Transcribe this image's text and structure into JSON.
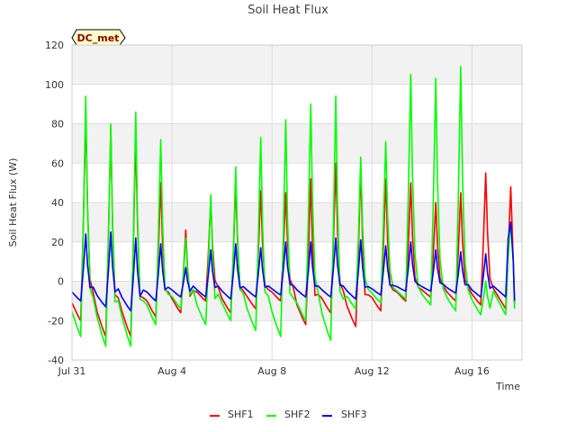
{
  "chart_data": {
    "type": "line",
    "title": "Soil Heat Flux",
    "xlabel": "Time",
    "ylabel": "Soil Heat Flux (W)",
    "site_tag": "DC_met",
    "ylim": [
      -40,
      120
    ],
    "yticks": [
      -40,
      -20,
      0,
      20,
      40,
      60,
      80,
      100,
      120
    ],
    "xlim": [
      "2023-07-31",
      "2023-08-18"
    ],
    "xticks": [
      {
        "date": "2023-07-31",
        "label": "Jul 31"
      },
      {
        "date": "2023-08-04",
        "label": "Aug 4"
      },
      {
        "date": "2023-08-08",
        "label": "Aug 8"
      },
      {
        "date": "2023-08-12",
        "label": "Aug 12"
      },
      {
        "date": "2023-08-16",
        "label": "Aug 16"
      }
    ],
    "grid": true,
    "legend": "bottom",
    "daily_peak_dates": [
      "2023-07-31",
      "2023-08-01",
      "2023-08-02",
      "2023-08-03",
      "2023-08-04",
      "2023-08-05",
      "2023-08-06",
      "2023-08-07",
      "2023-08-08",
      "2023-08-09",
      "2023-08-10",
      "2023-08-11",
      "2023-08-12",
      "2023-08-13",
      "2023-08-14",
      "2023-08-15",
      "2023-08-16",
      "2023-08-17"
    ],
    "series": [
      {
        "name": "SHF1",
        "color": "#ff0000",
        "daily_max": [
          85,
          78,
          74,
          50,
          26,
          42,
          50,
          46,
          45,
          52,
          60,
          58,
          52,
          50,
          40,
          45,
          55,
          48
        ],
        "daily_min": [
          -20,
          -28,
          -28,
          -18,
          -16,
          -10,
          -16,
          -14,
          -10,
          -22,
          -16,
          -23,
          -15,
          -10,
          -8,
          -10,
          -12,
          -14
        ],
        "end_value": -12
      },
      {
        "name": "SHF2",
        "color": "#00ff00",
        "daily_max": [
          94,
          80,
          86,
          72,
          22,
          44,
          58,
          73,
          82,
          90,
          94,
          63,
          71,
          105,
          103,
          109,
          0,
          0
        ],
        "daily_min": [
          -28,
          -33,
          -33,
          -22,
          -14,
          -22,
          -20,
          -25,
          -28,
          -20,
          -30,
          -14,
          -11,
          -9,
          -12,
          -15,
          -17,
          -17
        ],
        "end_value": -14
      },
      {
        "name": "SHF3",
        "color": "#0000ff",
        "daily_max": [
          24,
          25,
          22,
          19,
          7,
          16,
          19,
          17,
          20,
          20,
          22,
          21,
          18,
          20,
          16,
          15,
          14,
          14
        ],
        "daily_min": [
          -10,
          -13,
          -15,
          -10,
          -8,
          -8,
          -9,
          -8,
          -7,
          -8,
          -8,
          -9,
          -7,
          -5,
          -5,
          -6,
          -8,
          -8
        ],
        "end_value": -10
      }
    ]
  }
}
